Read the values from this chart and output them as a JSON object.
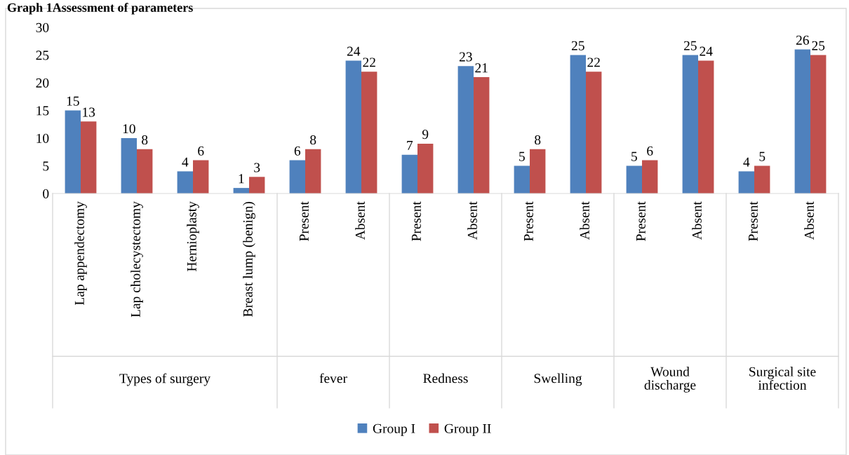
{
  "chart_data": {
    "type": "bar",
    "title": "Graph 1Assessment of parameters",
    "categories": [
      "Lap appendectomy",
      "Lap cholecystectomy",
      "Hernioplasty",
      "Breast lump (benign)",
      "Present",
      "Absent",
      "Present",
      "Absent",
      "Present",
      "Absent",
      "Present",
      "Absent",
      "Present",
      "Absent"
    ],
    "series": [
      {
        "name": "Group I",
        "color": "#4f81bd",
        "values": [
          15,
          10,
          4,
          1,
          6,
          24,
          7,
          23,
          5,
          25,
          5,
          25,
          4,
          26
        ]
      },
      {
        "name": "Group II",
        "color": "#c0504d",
        "values": [
          13,
          8,
          6,
          3,
          8,
          22,
          9,
          21,
          8,
          22,
          6,
          24,
          5,
          25
        ]
      }
    ],
    "annotations": [
      "Types of surgery",
      "fever",
      "Redness",
      "Swelling",
      "Wound\ndischarge",
      "Surgical site\ninfection"
    ],
    "ylim": [
      0,
      30
    ],
    "yticks": [
      0,
      5,
      10,
      15,
      20,
      25,
      30
    ],
    "data_labels": true,
    "grid": false,
    "legend": "bottom"
  }
}
